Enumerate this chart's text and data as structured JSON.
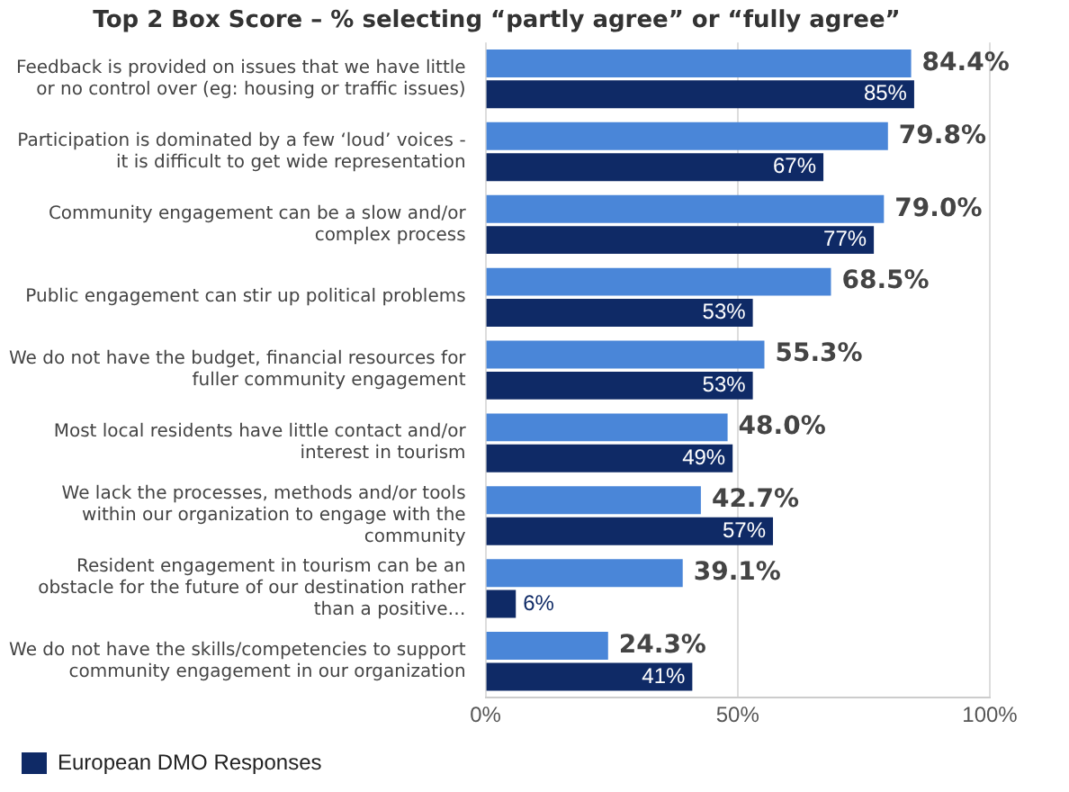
{
  "chart_data": {
    "type": "bar",
    "orientation": "horizontal",
    "title": "Top 2 Box Score – % selecting “partly agree” or “fully agree”",
    "categories": [
      "Feedback is provided on issues that we have little or no control over (eg: housing or traffic issues)",
      "Participation is dominated by a few ‘loud’ voices - it is difficult to get wide representation",
      "Community engagement can be a slow and/or complex process",
      "Public engagement can stir up political problems",
      "We do not have the budget, financial resources for fuller community engagement",
      "Most local residents have little contact and/or interest in tourism",
      "We lack the processes, methods and/or tools within our organization to engage with the community",
      "Resident engagement in tourism can be an obstacle for the future of our destination rather than a positive…",
      "We do not have the skills/competencies to support community engagement in our organization"
    ],
    "series": [
      {
        "color": "#4a86d8",
        "values": [
          84.4,
          79.8,
          79.0,
          68.5,
          55.3,
          48.0,
          42.7,
          39.1,
          24.3
        ],
        "value_labels": [
          "84.4%",
          "79.8%",
          "79.0%",
          "68.5%",
          "55.3%",
          "48.0%",
          "42.7%",
          "39.1%",
          "24.3%"
        ]
      },
      {
        "name": "European DMO Responses",
        "color": "#0f2a66",
        "values": [
          85,
          67,
          77,
          53,
          53,
          49,
          57,
          6,
          41
        ],
        "value_labels": [
          "85%",
          "67%",
          "77%",
          "53%",
          "53%",
          "49%",
          "57%",
          "6%",
          "41%"
        ]
      }
    ],
    "xlim": [
      0,
      100
    ],
    "xticks": [
      {
        "value": 0,
        "label": "0%"
      },
      {
        "value": 50,
        "label": "50%"
      },
      {
        "value": 100,
        "label": "100%"
      }
    ],
    "grid": "x",
    "legend": "bottom left"
  }
}
